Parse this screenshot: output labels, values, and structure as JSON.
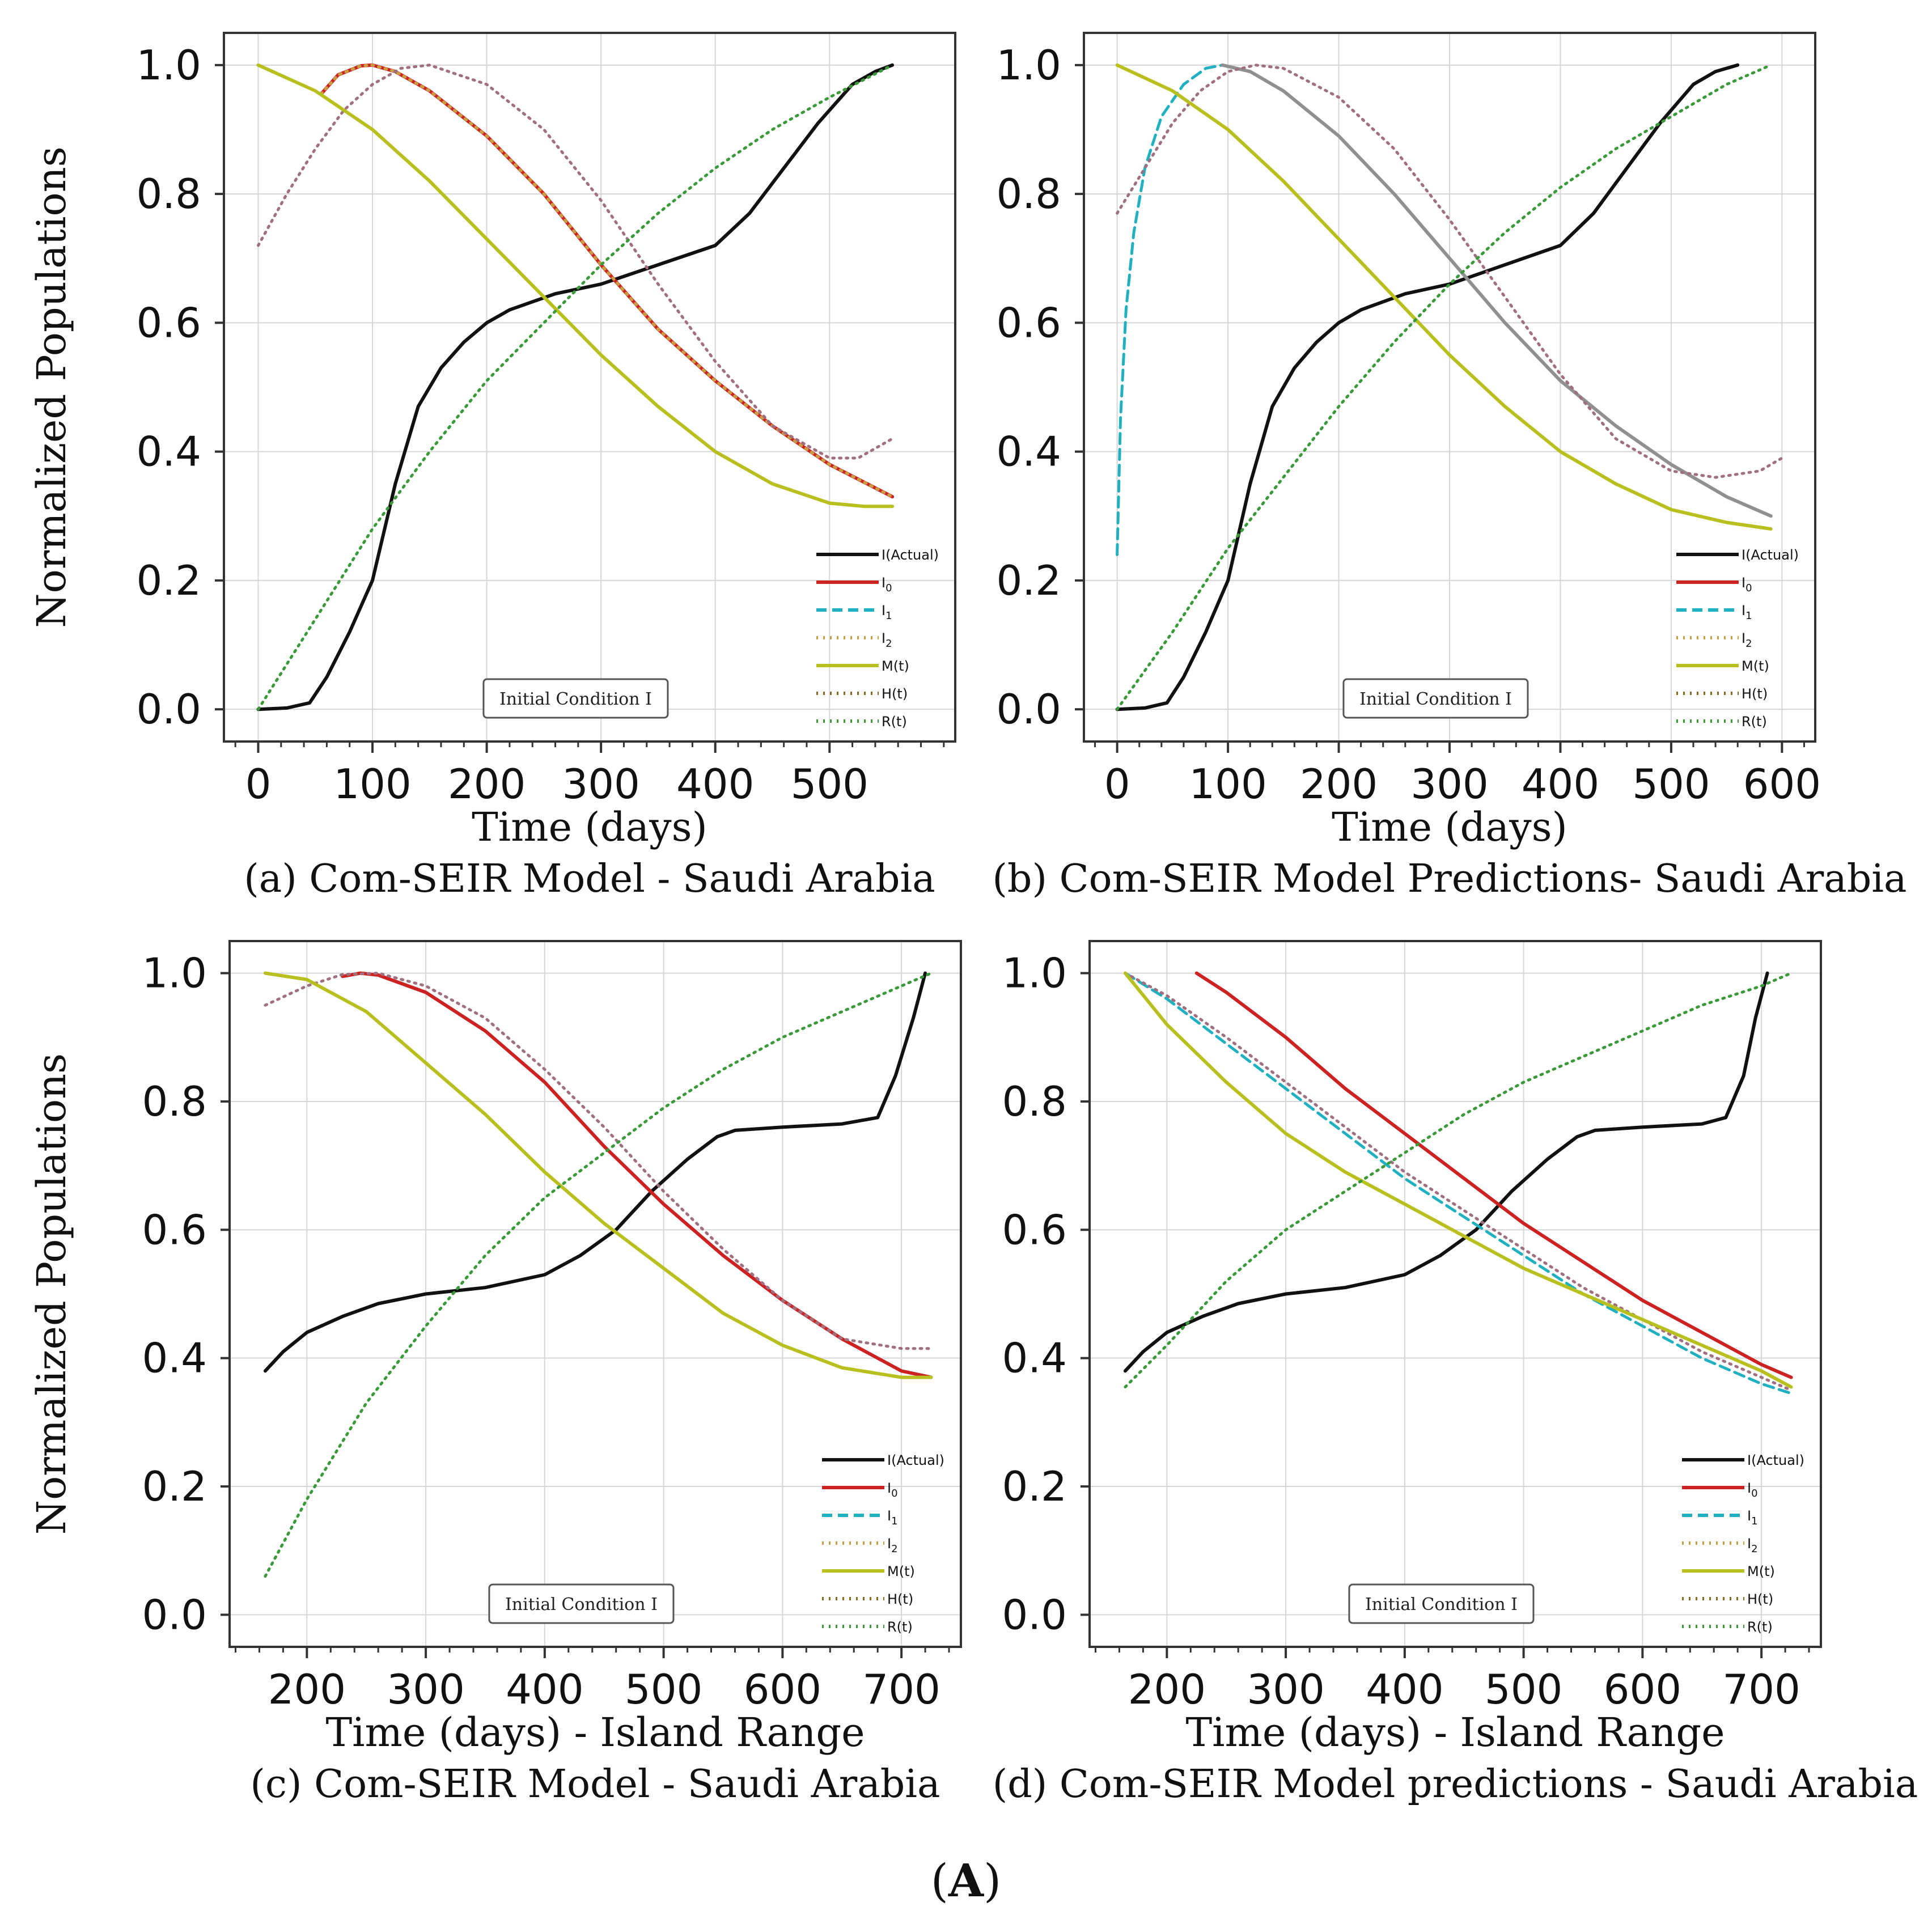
{
  "figure_label": {
    "open": "(",
    "letter": "A",
    "close": ")"
  },
  "chart_data": [
    {
      "type": "line",
      "caption": "(a) Com-SEIR Model - Saudi Arabia",
      "xlabel": "Time (days)",
      "ylabel": "Normalized Populations",
      "xlim": [
        -30,
        610
      ],
      "ylim": [
        -0.05,
        1.05
      ],
      "xticks": [
        0,
        100,
        200,
        300,
        400,
        500
      ],
      "yticks": [
        0.0,
        0.2,
        0.4,
        0.6,
        0.8,
        1.0
      ],
      "ytick_labels": [
        "0.0",
        "0.2",
        "0.4",
        "0.6",
        "0.8",
        "1.0"
      ],
      "annotation": "Initial Condition I",
      "grid": true,
      "legend_position": "lower-right",
      "legend": [
        "I(Actual)",
        "I0",
        "I1",
        "I2",
        "M(t)",
        "H(t)",
        "R(t)"
      ],
      "series": [
        {
          "name": "I(Actual)",
          "color": "#111111",
          "style": "solid",
          "x": [
            0,
            25,
            45,
            60,
            80,
            100,
            120,
            140,
            160,
            180,
            200,
            220,
            260,
            300,
            350,
            400,
            430,
            460,
            490,
            520,
            540,
            555
          ],
          "y": [
            0.0,
            0.002,
            0.01,
            0.05,
            0.12,
            0.2,
            0.35,
            0.47,
            0.53,
            0.57,
            0.6,
            0.62,
            0.645,
            0.66,
            0.69,
            0.72,
            0.77,
            0.84,
            0.91,
            0.97,
            0.99,
            1.0
          ]
        },
        {
          "name": "I0",
          "color": "#cc2222",
          "style": "solid",
          "x": [
            55,
            70,
            90,
            100,
            120,
            150,
            200,
            250,
            300,
            350,
            400,
            450,
            500,
            555
          ],
          "y": [
            0.955,
            0.985,
            0.999,
            1.0,
            0.99,
            0.96,
            0.89,
            0.8,
            0.69,
            0.59,
            0.51,
            0.44,
            0.38,
            0.33
          ]
        },
        {
          "name": "I2",
          "color": "#c8a040",
          "style": "dotted",
          "x": [
            55,
            70,
            90,
            100,
            120,
            150,
            200,
            250,
            300,
            350,
            400,
            450,
            500,
            555
          ],
          "y": [
            0.955,
            0.985,
            0.999,
            1.0,
            0.99,
            0.96,
            0.89,
            0.8,
            0.69,
            0.59,
            0.51,
            0.44,
            0.38,
            0.33
          ]
        },
        {
          "name": "H(t)",
          "color": "#a07080",
          "style": "dotted",
          "x": [
            0,
            25,
            50,
            75,
            100,
            125,
            150,
            200,
            250,
            300,
            350,
            400,
            450,
            500,
            525,
            555
          ],
          "y": [
            0.72,
            0.8,
            0.87,
            0.93,
            0.97,
            0.995,
            1.0,
            0.97,
            0.9,
            0.79,
            0.66,
            0.54,
            0.44,
            0.39,
            0.39,
            0.42
          ]
        },
        {
          "name": "M(t)",
          "color": "#b8c020",
          "style": "solid",
          "x": [
            0,
            50,
            100,
            150,
            200,
            250,
            300,
            350,
            400,
            450,
            500,
            530,
            555
          ],
          "y": [
            1.0,
            0.96,
            0.9,
            0.82,
            0.73,
            0.64,
            0.55,
            0.47,
            0.4,
            0.35,
            0.32,
            0.315,
            0.315
          ]
        },
        {
          "name": "R(t)",
          "color": "#3a9a3a",
          "style": "dotted",
          "x": [
            0,
            50,
            100,
            150,
            200,
            250,
            300,
            350,
            400,
            450,
            500,
            555
          ],
          "y": [
            0.0,
            0.14,
            0.28,
            0.4,
            0.51,
            0.6,
            0.69,
            0.77,
            0.84,
            0.9,
            0.95,
            1.0
          ]
        }
      ]
    },
    {
      "type": "line",
      "caption": "(b) Com-SEIR Model Predictions-  Saudi Arabia",
      "xlabel": "Time (days)",
      "ylabel": "",
      "xlim": [
        -30,
        630
      ],
      "ylim": [
        -0.05,
        1.05
      ],
      "xticks": [
        0,
        100,
        200,
        300,
        400,
        500,
        600
      ],
      "yticks": [
        0.0,
        0.2,
        0.4,
        0.6,
        0.8,
        1.0
      ],
      "ytick_labels": [
        "0.0",
        "0.2",
        "0.4",
        "0.6",
        "0.8",
        "1.0"
      ],
      "annotation": "Initial Condition I",
      "grid": true,
      "legend_position": "lower-right",
      "legend": [
        "I(Actual)",
        "I0",
        "I1",
        "I2",
        "M(t)",
        "H(t)",
        "R(t)"
      ],
      "series": [
        {
          "name": "I(Actual)",
          "color": "#111111",
          "style": "solid",
          "x": [
            0,
            25,
            45,
            60,
            80,
            100,
            120,
            140,
            160,
            180,
            200,
            220,
            260,
            300,
            350,
            400,
            430,
            460,
            490,
            520,
            540,
            560
          ],
          "y": [
            0.0,
            0.002,
            0.01,
            0.05,
            0.12,
            0.2,
            0.35,
            0.47,
            0.53,
            0.57,
            0.6,
            0.62,
            0.645,
            0.66,
            0.69,
            0.72,
            0.77,
            0.84,
            0.91,
            0.97,
            0.99,
            1.0
          ]
        },
        {
          "name": "I1",
          "color": "#20b0c0",
          "style": "dashed",
          "x": [
            0,
            3,
            8,
            15,
            25,
            40,
            60,
            80,
            95
          ],
          "y": [
            0.24,
            0.45,
            0.62,
            0.74,
            0.84,
            0.92,
            0.97,
            0.995,
            1.0
          ]
        },
        {
          "name": "I0",
          "color": "#909090",
          "style": "solid",
          "x": [
            95,
            120,
            150,
            200,
            250,
            300,
            350,
            400,
            450,
            500,
            550,
            590
          ],
          "y": [
            1.0,
            0.99,
            0.96,
            0.89,
            0.8,
            0.7,
            0.6,
            0.51,
            0.44,
            0.38,
            0.33,
            0.3
          ]
        },
        {
          "name": "H(t)",
          "color": "#a07080",
          "style": "dotted",
          "x": [
            0,
            25,
            50,
            75,
            100,
            125,
            150,
            200,
            250,
            300,
            350,
            400,
            450,
            500,
            540,
            580,
            600
          ],
          "y": [
            0.77,
            0.84,
            0.91,
            0.96,
            0.99,
            1.0,
            0.995,
            0.95,
            0.87,
            0.76,
            0.64,
            0.52,
            0.42,
            0.37,
            0.36,
            0.37,
            0.39
          ]
        },
        {
          "name": "M(t)",
          "color": "#b8c020",
          "style": "solid",
          "x": [
            0,
            50,
            100,
            150,
            200,
            250,
            300,
            350,
            400,
            450,
            500,
            550,
            590
          ],
          "y": [
            1.0,
            0.96,
            0.9,
            0.82,
            0.73,
            0.64,
            0.55,
            0.47,
            0.4,
            0.35,
            0.31,
            0.29,
            0.28
          ]
        },
        {
          "name": "R(t)",
          "color": "#3a9a3a",
          "style": "dotted",
          "x": [
            0,
            50,
            100,
            150,
            200,
            250,
            300,
            350,
            400,
            450,
            500,
            550,
            590
          ],
          "y": [
            0.0,
            0.12,
            0.25,
            0.36,
            0.47,
            0.57,
            0.66,
            0.74,
            0.81,
            0.87,
            0.92,
            0.97,
            1.0
          ]
        }
      ]
    },
    {
      "type": "line",
      "caption": "(c) Com-SEIR Model - Saudi Arabia",
      "xlabel": "Time (days) - Island Range",
      "ylabel": "Normalized Populations",
      "xlim": [
        135,
        750
      ],
      "ylim": [
        -0.05,
        1.05
      ],
      "xticks": [
        200,
        300,
        400,
        500,
        600,
        700
      ],
      "yticks": [
        0.0,
        0.2,
        0.4,
        0.6,
        0.8,
        1.0
      ],
      "ytick_labels": [
        "0.0",
        "0.2",
        "0.4",
        "0.6",
        "0.8",
        "1.0"
      ],
      "annotation": "Initial Condition I",
      "grid": true,
      "legend_position": "lower-right",
      "legend": [
        "I(Actual)",
        "I0",
        "I1",
        "I2",
        "M(t)",
        "H(t)",
        "R(t)"
      ],
      "series": [
        {
          "name": "I(Actual)",
          "color": "#111111",
          "style": "solid",
          "x": [
            165,
            180,
            200,
            230,
            260,
            300,
            350,
            400,
            430,
            460,
            490,
            520,
            545,
            560,
            600,
            650,
            680,
            695,
            710,
            720
          ],
          "y": [
            0.38,
            0.41,
            0.44,
            0.465,
            0.485,
            0.5,
            0.51,
            0.53,
            0.56,
            0.6,
            0.66,
            0.71,
            0.745,
            0.755,
            0.76,
            0.765,
            0.775,
            0.84,
            0.93,
            1.0
          ]
        },
        {
          "name": "I0",
          "color": "#cc2222",
          "style": "solid",
          "x": [
            230,
            245,
            260,
            300,
            350,
            400,
            450,
            500,
            550,
            600,
            650,
            700,
            725
          ],
          "y": [
            0.995,
            1.0,
            0.997,
            0.97,
            0.91,
            0.83,
            0.73,
            0.64,
            0.56,
            0.49,
            0.43,
            0.38,
            0.37
          ]
        },
        {
          "name": "H(t)",
          "color": "#a07080",
          "style": "dotted",
          "x": [
            165,
            200,
            230,
            260,
            300,
            350,
            400,
            450,
            500,
            550,
            600,
            650,
            700,
            725
          ],
          "y": [
            0.95,
            0.98,
            0.998,
            1.0,
            0.98,
            0.93,
            0.85,
            0.76,
            0.66,
            0.57,
            0.49,
            0.43,
            0.415,
            0.415
          ]
        },
        {
          "name": "M(t)",
          "color": "#b8c020",
          "style": "solid",
          "x": [
            165,
            200,
            250,
            300,
            350,
            400,
            450,
            500,
            550,
            600,
            650,
            700,
            725
          ],
          "y": [
            1.0,
            0.99,
            0.94,
            0.86,
            0.78,
            0.69,
            0.61,
            0.54,
            0.47,
            0.42,
            0.385,
            0.37,
            0.37
          ]
        },
        {
          "name": "R(t)",
          "color": "#3a9a3a",
          "style": "dotted",
          "x": [
            165,
            200,
            250,
            300,
            350,
            400,
            450,
            500,
            550,
            600,
            650,
            700,
            725
          ],
          "y": [
            0.06,
            0.18,
            0.33,
            0.45,
            0.56,
            0.65,
            0.72,
            0.79,
            0.85,
            0.9,
            0.94,
            0.98,
            1.0
          ]
        }
      ]
    },
    {
      "type": "line",
      "caption": "(d) Com-SEIR Model predictions - Saudi Arabia",
      "xlabel": "Time (days) - Island Range",
      "ylabel": "",
      "xlim": [
        135,
        750
      ],
      "ylim": [
        -0.05,
        1.05
      ],
      "xticks": [
        200,
        300,
        400,
        500,
        600,
        700
      ],
      "yticks": [
        0.0,
        0.2,
        0.4,
        0.6,
        0.8,
        1.0
      ],
      "ytick_labels": [
        "0.0",
        "0.2",
        "0.4",
        "0.6",
        "0.8",
        "1.0"
      ],
      "annotation": "Initial Condition I",
      "grid": true,
      "legend_position": "lower-right",
      "legend": [
        "I(Actual)",
        "I0",
        "I1",
        "I2",
        "M(t)",
        "H(t)",
        "R(t)"
      ],
      "series": [
        {
          "name": "I(Actual)",
          "color": "#111111",
          "style": "solid",
          "x": [
            165,
            180,
            200,
            230,
            260,
            300,
            350,
            400,
            430,
            460,
            490,
            520,
            545,
            560,
            600,
            650,
            670,
            685,
            695,
            705
          ],
          "y": [
            0.38,
            0.41,
            0.44,
            0.465,
            0.485,
            0.5,
            0.51,
            0.53,
            0.56,
            0.6,
            0.66,
            0.71,
            0.745,
            0.755,
            0.76,
            0.765,
            0.775,
            0.84,
            0.93,
            1.0
          ]
        },
        {
          "name": "I0",
          "color": "#cc2222",
          "style": "solid",
          "x": [
            225,
            250,
            300,
            350,
            400,
            450,
            500,
            550,
            600,
            650,
            700,
            725
          ],
          "y": [
            1.0,
            0.97,
            0.9,
            0.82,
            0.75,
            0.68,
            0.61,
            0.55,
            0.49,
            0.44,
            0.39,
            0.37
          ]
        },
        {
          "name": "I1",
          "color": "#20b0c0",
          "style": "dashed",
          "x": [
            165,
            200,
            250,
            300,
            350,
            400,
            450,
            500,
            550,
            600,
            650,
            700,
            725
          ],
          "y": [
            1.0,
            0.96,
            0.89,
            0.82,
            0.75,
            0.68,
            0.62,
            0.56,
            0.5,
            0.45,
            0.4,
            0.36,
            0.345
          ]
        },
        {
          "name": "H(t)",
          "color": "#a07080",
          "style": "dotted",
          "x": [
            165,
            200,
            250,
            300,
            350,
            400,
            450,
            500,
            550,
            600,
            650,
            700,
            725
          ],
          "y": [
            1.0,
            0.965,
            0.9,
            0.83,
            0.76,
            0.69,
            0.63,
            0.57,
            0.51,
            0.46,
            0.41,
            0.37,
            0.35
          ]
        },
        {
          "name": "M(t)",
          "color": "#b8c020",
          "style": "solid",
          "x": [
            165,
            200,
            250,
            300,
            350,
            400,
            450,
            500,
            550,
            600,
            650,
            700,
            725
          ],
          "y": [
            1.0,
            0.92,
            0.83,
            0.75,
            0.69,
            0.64,
            0.59,
            0.54,
            0.5,
            0.46,
            0.42,
            0.38,
            0.355
          ]
        },
        {
          "name": "R(t)",
          "color": "#3a9a3a",
          "style": "dotted",
          "x": [
            165,
            200,
            250,
            300,
            350,
            400,
            450,
            500,
            550,
            600,
            650,
            700,
            725
          ],
          "y": [
            0.355,
            0.42,
            0.52,
            0.6,
            0.66,
            0.72,
            0.78,
            0.83,
            0.87,
            0.91,
            0.95,
            0.98,
            1.0
          ]
        }
      ]
    }
  ]
}
